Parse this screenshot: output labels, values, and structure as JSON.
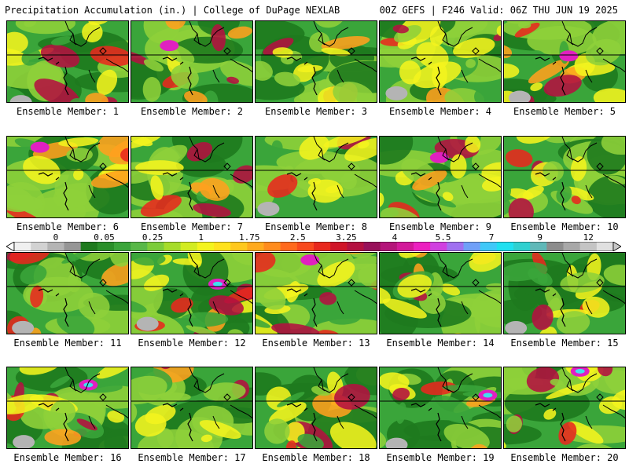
{
  "header": {
    "left_title": "Precipitation Accumulation (in.) | College of DuPage NEXLAB",
    "right_title": "00Z GEFS | F246 Valid: 06Z THU JUN 19 2025"
  },
  "colorbar": {
    "labels": [
      "0",
      "0.05",
      "0.25",
      "1",
      "1.75",
      "2.5",
      "3.25",
      "4",
      "5.5",
      "7",
      "9",
      "12"
    ],
    "colors": [
      "#f0f0f0",
      "#d2d2d2",
      "#b4b4b4",
      "#969696",
      "#1e7a1e",
      "#2a8f2a",
      "#3aa53a",
      "#58b848",
      "#7ccc3a",
      "#a6dc2a",
      "#d2ec22",
      "#f4f41e",
      "#ffe21e",
      "#ffc81e",
      "#ffaa1e",
      "#ff8c1e",
      "#ff6a1e",
      "#f84a1e",
      "#e8281e",
      "#d01428",
      "#b41040",
      "#98105a",
      "#b4147a",
      "#d2189a",
      "#ec20c0",
      "#d040e0",
      "#a070f0",
      "#70a0f8",
      "#40c8f8",
      "#20e0f0",
      "#30d0d0",
      "#60b8b8",
      "#8c8c8c",
      "#a8a8a8",
      "#c4c4c4",
      "#e0e0e0"
    ]
  },
  "palette": {
    "dark_green": "#1e7a1e",
    "green": "#3aa53a",
    "light_green": "#8ed03a",
    "yellow": "#f4f41e",
    "orange": "#ffa01e",
    "red": "#e8281e",
    "crimson": "#b41040",
    "magenta": "#e020c0",
    "cyan": "#40e0f0",
    "gray": "#b4b4b4"
  },
  "panels": [
    {
      "label": "Ensemble Member: 1"
    },
    {
      "label": "Ensemble Member: 2"
    },
    {
      "label": "Ensemble Member: 3"
    },
    {
      "label": "Ensemble Member: 4"
    },
    {
      "label": "Ensemble Member: 5"
    },
    {
      "label": "Ensemble Member: 6"
    },
    {
      "label": "Ensemble Member: 7"
    },
    {
      "label": "Ensemble Member: 8"
    },
    {
      "label": "Ensemble Member: 9"
    },
    {
      "label": "Ensemble Member: 10"
    },
    {
      "label": "Ensemble Member: 11"
    },
    {
      "label": "Ensemble Member: 12"
    },
    {
      "label": "Ensemble Member: 13"
    },
    {
      "label": "Ensemble Member: 14"
    },
    {
      "label": "Ensemble Member: 15"
    },
    {
      "label": "Ensemble Member: 16"
    },
    {
      "label": "Ensemble Member: 17"
    },
    {
      "label": "Ensemble Member: 18"
    },
    {
      "label": "Ensemble Member: 19"
    },
    {
      "label": "Ensemble Member: 20"
    }
  ]
}
